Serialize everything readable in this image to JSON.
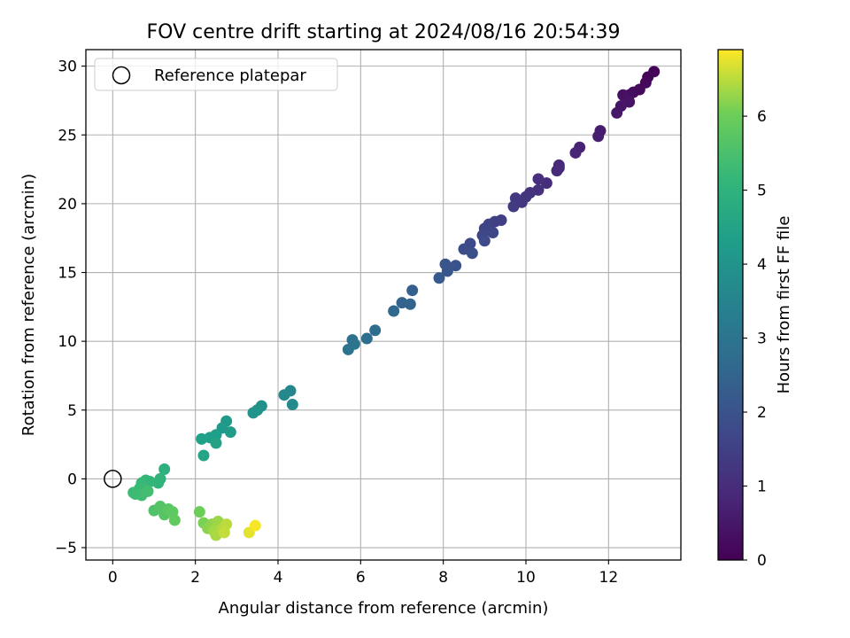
{
  "chart_data": {
    "type": "scatter",
    "title": "FOV centre drift starting at 2024/08/16 20:54:39",
    "xlabel": "Angular distance from reference (arcmin)",
    "ylabel": "Rotation from reference (arcmin)",
    "xlim": [
      -0.65,
      13.75
    ],
    "ylim": [
      -5.9,
      31.2
    ],
    "x_ticks": [
      "0",
      "2",
      "4",
      "6",
      "8",
      "10",
      "12"
    ],
    "y_ticks": [
      "−5",
      "0",
      "5",
      "10",
      "15",
      "20",
      "25",
      "30"
    ],
    "grid": true,
    "legend": {
      "position": "top-left",
      "entries": [
        {
          "label": "Reference platepar",
          "marker": "open-circle"
        }
      ]
    },
    "reference_point": {
      "x": 0,
      "y": 0
    },
    "colorbar": {
      "label": "Hours from first FF file",
      "colormap": "viridis",
      "range": [
        0,
        6.9
      ],
      "ticks": [
        "0",
        "1",
        "2",
        "3",
        "4",
        "5",
        "6"
      ]
    },
    "points": [
      {
        "x": 13.1,
        "y": 29.6,
        "h": 0.05
      },
      {
        "x": 12.95,
        "y": 29.2,
        "h": 0.1
      },
      {
        "x": 12.9,
        "y": 28.8,
        "h": 0.15
      },
      {
        "x": 12.75,
        "y": 28.3,
        "h": 0.2
      },
      {
        "x": 12.6,
        "y": 28.1,
        "h": 0.25
      },
      {
        "x": 12.5,
        "y": 27.9,
        "h": 0.3
      },
      {
        "x": 12.35,
        "y": 27.9,
        "h": 0.35
      },
      {
        "x": 12.5,
        "y": 27.4,
        "h": 0.4
      },
      {
        "x": 12.3,
        "y": 27.1,
        "h": 0.45
      },
      {
        "x": 12.2,
        "y": 26.6,
        "h": 0.5
      },
      {
        "x": 11.8,
        "y": 25.3,
        "h": 0.6
      },
      {
        "x": 11.75,
        "y": 24.9,
        "h": 0.65
      },
      {
        "x": 11.3,
        "y": 24.1,
        "h": 0.75
      },
      {
        "x": 11.2,
        "y": 23.7,
        "h": 0.8
      },
      {
        "x": 10.8,
        "y": 22.8,
        "h": 0.9
      },
      {
        "x": 10.75,
        "y": 22.4,
        "h": 0.95
      },
      {
        "x": 10.8,
        "y": 22.6,
        "h": 0.92
      },
      {
        "x": 10.5,
        "y": 21.5,
        "h": 1.0
      },
      {
        "x": 10.3,
        "y": 21.8,
        "h": 1.05
      },
      {
        "x": 10.3,
        "y": 21.0,
        "h": 1.1
      },
      {
        "x": 10.1,
        "y": 20.8,
        "h": 1.15
      },
      {
        "x": 10.0,
        "y": 20.5,
        "h": 1.2
      },
      {
        "x": 9.9,
        "y": 20.1,
        "h": 1.25
      },
      {
        "x": 9.75,
        "y": 20.4,
        "h": 1.3
      },
      {
        "x": 9.7,
        "y": 19.8,
        "h": 1.35
      },
      {
        "x": 9.4,
        "y": 18.8,
        "h": 1.45
      },
      {
        "x": 9.25,
        "y": 18.7,
        "h": 1.5
      },
      {
        "x": 9.1,
        "y": 18.5,
        "h": 1.55
      },
      {
        "x": 9.0,
        "y": 18.2,
        "h": 1.6
      },
      {
        "x": 8.95,
        "y": 17.7,
        "h": 1.65
      },
      {
        "x": 9.2,
        "y": 17.9,
        "h": 1.7
      },
      {
        "x": 9.0,
        "y": 17.3,
        "h": 1.75
      },
      {
        "x": 8.65,
        "y": 17.1,
        "h": 1.8
      },
      {
        "x": 8.5,
        "y": 16.7,
        "h": 1.85
      },
      {
        "x": 8.7,
        "y": 16.4,
        "h": 1.9
      },
      {
        "x": 8.3,
        "y": 15.5,
        "h": 2.0
      },
      {
        "x": 8.05,
        "y": 15.6,
        "h": 2.05
      },
      {
        "x": 8.1,
        "y": 15.1,
        "h": 2.1
      },
      {
        "x": 7.9,
        "y": 14.6,
        "h": 2.2
      },
      {
        "x": 7.25,
        "y": 13.7,
        "h": 2.35
      },
      {
        "x": 7.0,
        "y": 12.8,
        "h": 2.45
      },
      {
        "x": 7.2,
        "y": 12.7,
        "h": 2.5
      },
      {
        "x": 6.8,
        "y": 12.2,
        "h": 2.6
      },
      {
        "x": 6.35,
        "y": 10.8,
        "h": 2.75
      },
      {
        "x": 6.15,
        "y": 10.2,
        "h": 2.8
      },
      {
        "x": 5.8,
        "y": 10.1,
        "h": 2.9
      },
      {
        "x": 5.85,
        "y": 9.8,
        "h": 2.95
      },
      {
        "x": 5.7,
        "y": 9.4,
        "h": 3.0
      },
      {
        "x": 4.3,
        "y": 6.4,
        "h": 3.6
      },
      {
        "x": 4.15,
        "y": 6.1,
        "h": 3.65
      },
      {
        "x": 4.35,
        "y": 5.4,
        "h": 3.7
      },
      {
        "x": 3.6,
        "y": 5.3,
        "h": 3.9
      },
      {
        "x": 3.5,
        "y": 5.0,
        "h": 3.95
      },
      {
        "x": 3.4,
        "y": 4.8,
        "h": 4.0
      },
      {
        "x": 2.75,
        "y": 4.2,
        "h": 4.15
      },
      {
        "x": 2.65,
        "y": 3.7,
        "h": 4.2
      },
      {
        "x": 2.85,
        "y": 3.4,
        "h": 4.25
      },
      {
        "x": 2.5,
        "y": 3.2,
        "h": 4.3
      },
      {
        "x": 2.35,
        "y": 3.0,
        "h": 4.35
      },
      {
        "x": 2.15,
        "y": 2.9,
        "h": 4.4
      },
      {
        "x": 2.5,
        "y": 2.6,
        "h": 4.45
      },
      {
        "x": 2.2,
        "y": 1.7,
        "h": 4.55
      },
      {
        "x": 1.25,
        "y": 0.7,
        "h": 4.9
      },
      {
        "x": 1.15,
        "y": 0.0,
        "h": 5.0
      },
      {
        "x": 1.1,
        "y": -0.3,
        "h": 5.05
      },
      {
        "x": 0.9,
        "y": -0.2,
        "h": 5.1
      },
      {
        "x": 0.8,
        "y": -0.1,
        "h": 5.15
      },
      {
        "x": 0.7,
        "y": -0.3,
        "h": 5.2
      },
      {
        "x": 0.65,
        "y": -0.7,
        "h": 5.25
      },
      {
        "x": 0.55,
        "y": -1.1,
        "h": 5.3
      },
      {
        "x": 0.7,
        "y": -1.2,
        "h": 5.35
      },
      {
        "x": 0.85,
        "y": -0.9,
        "h": 5.4
      },
      {
        "x": 0.5,
        "y": -1.0,
        "h": 5.3
      },
      {
        "x": 1.0,
        "y": -2.3,
        "h": 5.6
      },
      {
        "x": 1.15,
        "y": -2.0,
        "h": 5.65
      },
      {
        "x": 1.25,
        "y": -2.6,
        "h": 5.7
      },
      {
        "x": 1.35,
        "y": -2.2,
        "h": 5.75
      },
      {
        "x": 1.45,
        "y": -2.4,
        "h": 5.8
      },
      {
        "x": 1.5,
        "y": -3.0,
        "h": 5.85
      },
      {
        "x": 2.1,
        "y": -2.4,
        "h": 6.0
      },
      {
        "x": 2.2,
        "y": -3.2,
        "h": 6.1
      },
      {
        "x": 2.3,
        "y": -3.6,
        "h": 6.2
      },
      {
        "x": 2.4,
        "y": -3.3,
        "h": 6.25
      },
      {
        "x": 2.55,
        "y": -3.1,
        "h": 6.3
      },
      {
        "x": 2.45,
        "y": -3.8,
        "h": 6.35
      },
      {
        "x": 2.5,
        "y": -4.1,
        "h": 6.4
      },
      {
        "x": 2.65,
        "y": -3.6,
        "h": 6.45
      },
      {
        "x": 2.75,
        "y": -3.3,
        "h": 6.5
      },
      {
        "x": 2.7,
        "y": -3.9,
        "h": 6.55
      },
      {
        "x": 3.3,
        "y": -3.9,
        "h": 6.75
      },
      {
        "x": 3.45,
        "y": -3.4,
        "h": 6.85
      }
    ]
  }
}
